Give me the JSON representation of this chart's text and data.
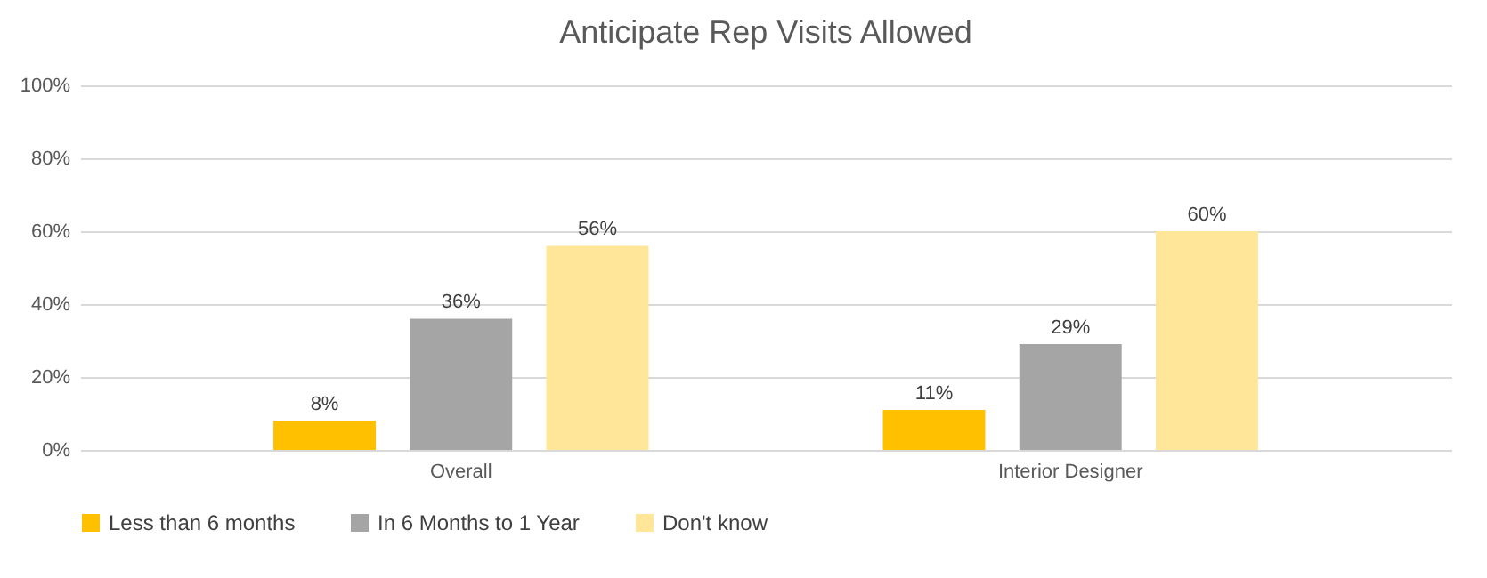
{
  "chart_data": {
    "type": "bar",
    "title": "Anticipate Rep Visits Allowed",
    "categories": [
      "Overall",
      "Interior Designer"
    ],
    "series": [
      {
        "name": "Less than 6 months",
        "color": "#ffc000",
        "values": [
          8,
          11
        ],
        "value_labels": [
          "8%",
          "11%"
        ]
      },
      {
        "name": "In 6 Months to 1 Year",
        "color": "#a5a5a5",
        "values": [
          36,
          29
        ],
        "value_labels": [
          "36%",
          "29%"
        ]
      },
      {
        "name": "Don't know",
        "color": "#ffe699",
        "values": [
          56,
          60
        ],
        "value_labels": [
          "56%",
          "60%"
        ]
      }
    ],
    "ylim": [
      0,
      100
    ],
    "yticks": [
      {
        "value": 0,
        "label": "0%"
      },
      {
        "value": 20,
        "label": "20%"
      },
      {
        "value": 40,
        "label": "40%"
      },
      {
        "value": 60,
        "label": "60%"
      },
      {
        "value": 80,
        "label": "80%"
      },
      {
        "value": 100,
        "label": "100%"
      }
    ],
    "grid": "y",
    "legend": "bottom"
  }
}
